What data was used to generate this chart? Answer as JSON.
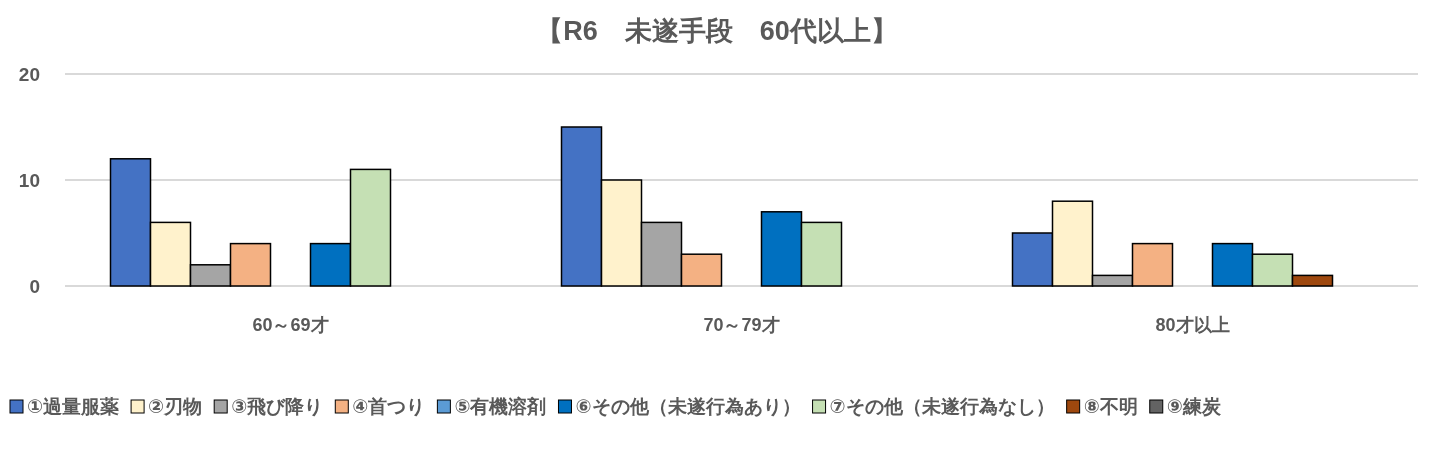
{
  "chart_data": {
    "type": "bar",
    "title": "【R6　未遂手段　60代以上】",
    "categories": [
      "60～69才",
      "70～79才",
      "80才以上"
    ],
    "ylim": [
      0,
      20
    ],
    "yticks": [
      0,
      10,
      20
    ],
    "grid": "y",
    "legend": "bottom",
    "series": [
      {
        "name": "①過量服薬",
        "color": "#4472c4",
        "values": [
          12,
          15,
          5
        ]
      },
      {
        "name": "②刃物",
        "color": "#fff2cc",
        "values": [
          6,
          10,
          8
        ]
      },
      {
        "name": "③飛び降り",
        "color": "#a5a5a5",
        "values": [
          2,
          6,
          1
        ]
      },
      {
        "name": "④首つり",
        "color": "#f4b183",
        "values": [
          4,
          3,
          4
        ]
      },
      {
        "name": "⑤有機溶剤",
        "color": "#5b9bd5",
        "values": [
          0,
          0,
          0
        ]
      },
      {
        "name": "⑥その他（未遂行為あり）",
        "color": "#0070c0",
        "values": [
          4,
          7,
          4
        ]
      },
      {
        "name": "⑦その他（未遂行為なし）",
        "color": "#c5e0b4",
        "values": [
          11,
          6,
          3
        ]
      },
      {
        "name": "⑧不明",
        "color": "#9e480e",
        "values": [
          0,
          0,
          1
        ]
      },
      {
        "name": "⑨練炭",
        "color": "#636363",
        "values": [
          0,
          0,
          0
        ]
      }
    ]
  }
}
